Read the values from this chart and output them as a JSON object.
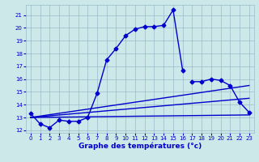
{
  "xlabel": "Graphe des températures (°c)",
  "background_color": "#cce8e8",
  "line_color": "#0000cc",
  "grid_color": "#99bbcc",
  "xlim": [
    -0.5,
    23.5
  ],
  "ylim": [
    11.8,
    21.8
  ],
  "xticks": [
    0,
    1,
    2,
    3,
    4,
    5,
    6,
    7,
    8,
    9,
    10,
    11,
    12,
    13,
    14,
    15,
    16,
    17,
    18,
    19,
    20,
    21,
    22,
    23
  ],
  "yticks": [
    12,
    13,
    14,
    15,
    16,
    17,
    18,
    19,
    20,
    21
  ],
  "lines": [
    {
      "x": [
        0,
        1,
        2,
        3,
        4,
        5,
        6,
        7,
        8,
        9,
        10,
        11,
        12,
        13,
        14,
        15,
        16
      ],
      "y": [
        13.3,
        12.5,
        12.2,
        12.8,
        12.7,
        12.7,
        13.0,
        14.9,
        17.5,
        18.4,
        19.4,
        19.9,
        20.1,
        20.1,
        20.2,
        21.4,
        16.7
      ],
      "markers": true
    },
    {
      "x": [
        17,
        18,
        19,
        20,
        21,
        22,
        23
      ],
      "y": [
        15.8,
        15.8,
        16.0,
        15.9,
        15.5,
        14.2,
        13.4
      ],
      "markers": true
    },
    {
      "x": [
        0,
        23
      ],
      "y": [
        13.0,
        15.5
      ],
      "markers": false
    },
    {
      "x": [
        0,
        23
      ],
      "y": [
        13.0,
        14.5
      ],
      "markers": false
    },
    {
      "x": [
        0,
        23
      ],
      "y": [
        13.0,
        13.2
      ],
      "markers": false
    }
  ],
  "marker": "D",
  "markersize": 2.5,
  "linewidth": 1.0,
  "tick_fontsize": 5.0,
  "xlabel_fontsize": 6.5
}
